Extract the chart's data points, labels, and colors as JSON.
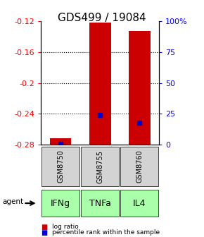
{
  "title": "GDS499 / 19084",
  "samples": [
    "GSM8750",
    "GSM8755",
    "GSM8760"
  ],
  "agents": [
    "IFNg",
    "TNFa",
    "IL4"
  ],
  "log_ratios": [
    -0.272,
    -0.122,
    -0.133
  ],
  "percentile_ranks": [
    0.5,
    24.0,
    18.0
  ],
  "ymin": -0.28,
  "ymax": -0.12,
  "yticks_left": [
    -0.12,
    -0.16,
    -0.2,
    -0.24,
    -0.28
  ],
  "yticks_right": [
    100,
    75,
    50,
    25,
    0
  ],
  "bar_color": "#cc0000",
  "blue_color": "#0000cc",
  "bar_bottom": -0.28,
  "bar_width": 0.55,
  "gsm_box_color": "#d3d3d3",
  "agent_box_color": "#aaffaa",
  "legend_red_label": "log ratio",
  "legend_blue_label": "percentile rank within the sample",
  "title_fontsize": 11,
  "tick_fontsize": 8,
  "agent_fontsize": 9,
  "gsm_fontsize": 7
}
